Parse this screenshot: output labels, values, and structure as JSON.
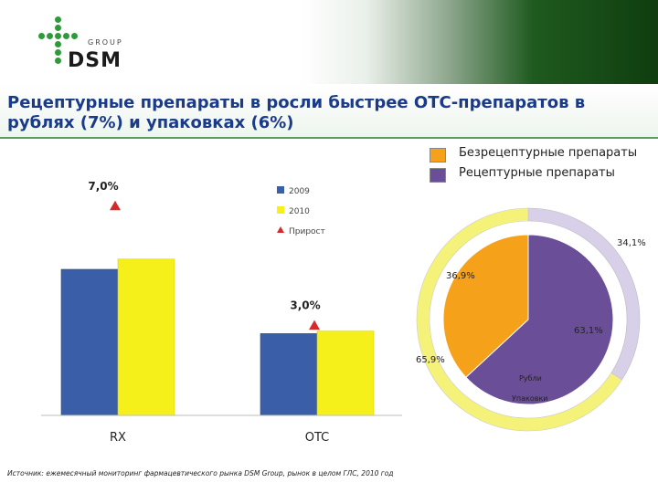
{
  "header": {
    "logo_group": "GROUP",
    "logo_brand": "DSM"
  },
  "title": "Рецептурные препараты в росли быстрее ОТС-препаратов в рублях (7%) и упаковках (6%)",
  "source": "Источник: ежемесячный мониторинг фармацевтического рынка DSM Group, рынок в целом ГЛС, 2010 год",
  "colors": {
    "bar_2009": "#3a5fa8",
    "bar_2010": "#f5ef1a",
    "growth_marker": "#d42a2a",
    "pie_otc": "#f5a21a",
    "pie_rx": "#6a4f98",
    "ring_otc": "#f5f27a",
    "ring_rx": "#d8cfe8"
  },
  "chart_data": [
    {
      "type": "bar",
      "categories": [
        "RX",
        "OTC"
      ],
      "series": [
        {
          "name": "2009",
          "values": [
            100,
            56
          ]
        },
        {
          "name": "2010",
          "values": [
            107,
            57.7
          ]
        }
      ],
      "legend_extra": "Прирост",
      "growth_labels": [
        "7,0%",
        "3,0%"
      ],
      "title": "",
      "xlabel": "",
      "ylabel": "",
      "ylim": [
        0,
        150
      ],
      "grid": false,
      "legend_position": "top-right"
    },
    {
      "type": "pie",
      "legend": [
        "Безрецептурные препараты",
        "Рецептурные препараты"
      ],
      "inner": {
        "label": "Рубли",
        "slices": [
          {
            "name": "Безрецептурные препараты",
            "value": 36.9,
            "label": "36,9%"
          },
          {
            "name": "Рецептурные препараты",
            "value": 63.1,
            "label": "63,1%"
          }
        ]
      },
      "outer": {
        "label": "Упаковки",
        "slices": [
          {
            "name": "Безрецептурные препараты",
            "value": 65.9,
            "label": "65,9%"
          },
          {
            "name": "Рецептурные препараты",
            "value": 34.1,
            "label": "34,1%"
          }
        ]
      },
      "legend_position": "top"
    }
  ]
}
